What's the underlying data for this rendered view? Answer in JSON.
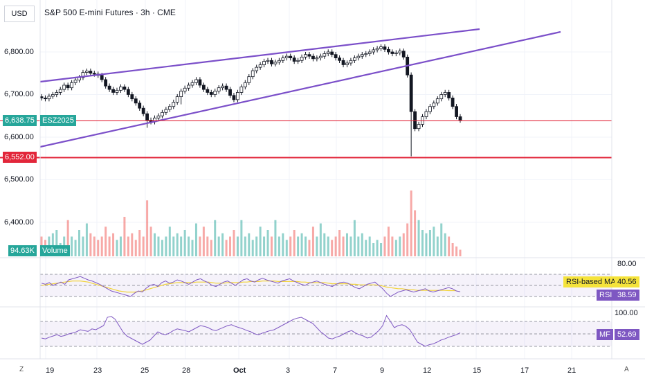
{
  "header": {
    "currency": "USD",
    "title": "S&P 500 E-mini Futures · 3h · CME"
  },
  "price_axis": {
    "labels": [
      "6,800.00",
      "6,700.00",
      "6,600.00",
      "6,500.00",
      "6,400.00"
    ],
    "current_price": "6,638.75",
    "symbol_badge": "ESZ2025",
    "support_level": "6,552.00"
  },
  "volume": {
    "value": "94.63K",
    "label": "Volume"
  },
  "rsi_panel": {
    "top_label": "80.00",
    "ma_label": "RSI-based MA",
    "ma_value": "40.56",
    "rsi_label": "RSI",
    "rsi_value": "38.59"
  },
  "mf_panel": {
    "top_label": "100.00",
    "mf_label": "MF",
    "mf_value": "52.69"
  },
  "time_axis": {
    "labels": [
      "19",
      "23",
      "25",
      "28",
      "Oct",
      "3",
      "7",
      "9",
      "12",
      "15",
      "17",
      "21"
    ],
    "left_corner": "Z",
    "right_corner": "A"
  },
  "colors": {
    "up": "#26a69a",
    "down": "#ef5350",
    "candle": "#131722",
    "channel": "#7b4fc9",
    "hline": "#e2263a",
    "rsi": "#7e57c2",
    "rsi_ma": "#f2d33a",
    "mf": "#7e57c2",
    "badge_green": "#26a69a",
    "badge_red": "#e2263a"
  },
  "chart_data": {
    "type": "candlestick",
    "title": "S&P 500 E-mini Futures · 3h · CME",
    "ylim": [
      6350,
      6880
    ],
    "y_ticks": [
      6800,
      6700,
      6600,
      6500,
      6400
    ],
    "x_ticks": [
      "19",
      "23",
      "25",
      "28",
      "Oct",
      "3",
      "7",
      "9",
      "12",
      "15",
      "17",
      "21"
    ],
    "close": [
      6692,
      6690,
      6696,
      6700,
      6705,
      6712,
      6722,
      6716,
      6728,
      6734,
      6740,
      6752,
      6755,
      6750,
      6748,
      6745,
      6735,
      6720,
      6712,
      6705,
      6710,
      6718,
      6712,
      6700,
      6690,
      6680,
      6668,
      6655,
      6640,
      6636,
      6645,
      6650,
      6658,
      6665,
      6672,
      6682,
      6695,
      6708,
      6715,
      6722,
      6728,
      6735,
      6722,
      6712,
      6705,
      6700,
      6708,
      6716,
      6720,
      6712,
      6698,
      6688,
      6705,
      6718,
      6728,
      6742,
      6756,
      6764,
      6770,
      6778,
      6780,
      6772,
      6776,
      6780,
      6786,
      6790,
      6786,
      6778,
      6780,
      6788,
      6794,
      6790,
      6784,
      6786,
      6790,
      6796,
      6800,
      6794,
      6786,
      6780,
      6770,
      6774,
      6780,
      6786,
      6790,
      6794,
      6796,
      6800,
      6805,
      6808,
      6812,
      6806,
      6800,
      6796,
      6798,
      6802,
      6788,
      6746,
      6660,
      6620,
      6630,
      6648,
      6660,
      6672,
      6680,
      6690,
      6700,
      6705,
      6692,
      6672,
      6648,
      6640
    ],
    "open": [
      6695,
      6692,
      6690,
      6696,
      6700,
      6705,
      6712,
      6722,
      6716,
      6728,
      6734,
      6740,
      6752,
      6755,
      6750,
      6748,
      6745,
      6735,
      6720,
      6712,
      6705,
      6710,
      6718,
      6712,
      6700,
      6690,
      6680,
      6668,
      6655,
      6640,
      6636,
      6645,
      6650,
      6658,
      6665,
      6672,
      6682,
      6695,
      6708,
      6715,
      6722,
      6728,
      6735,
      6722,
      6712,
      6705,
      6700,
      6708,
      6716,
      6720,
      6712,
      6698,
      6688,
      6705,
      6718,
      6728,
      6742,
      6756,
      6764,
      6770,
      6778,
      6780,
      6772,
      6776,
      6780,
      6786,
      6790,
      6786,
      6778,
      6780,
      6788,
      6794,
      6790,
      6784,
      6786,
      6790,
      6796,
      6800,
      6794,
      6786,
      6780,
      6770,
      6774,
      6780,
      6786,
      6790,
      6794,
      6796,
      6800,
      6805,
      6808,
      6812,
      6806,
      6800,
      6796,
      6798,
      6802,
      6788,
      6746,
      6660,
      6620,
      6630,
      6648,
      6660,
      6672,
      6680,
      6690,
      6700,
      6705,
      6692,
      6672,
      6648
    ],
    "volume": [
      0.3,
      0.25,
      0.3,
      0.35,
      0.4,
      0.2,
      0.3,
      0.55,
      0.3,
      0.25,
      0.4,
      0.3,
      0.5,
      0.35,
      0.3,
      0.25,
      0.3,
      0.45,
      0.3,
      0.35,
      0.25,
      0.3,
      0.6,
      0.3,
      0.35,
      0.25,
      0.4,
      0.3,
      0.85,
      0.45,
      0.35,
      0.3,
      0.25,
      0.3,
      0.45,
      0.3,
      0.35,
      0.3,
      0.4,
      0.3,
      0.25,
      0.5,
      0.3,
      0.45,
      0.3,
      0.25,
      0.55,
      0.3,
      0.35,
      0.25,
      0.3,
      0.4,
      0.3,
      0.55,
      0.3,
      0.35,
      0.25,
      0.3,
      0.45,
      0.3,
      0.4,
      0.3,
      0.55,
      0.3,
      0.35,
      0.25,
      0.3,
      0.4,
      0.3,
      0.35,
      0.3,
      0.25,
      0.45,
      0.3,
      0.5,
      0.35,
      0.3,
      0.25,
      0.3,
      0.4,
      0.3,
      0.35,
      0.3,
      0.55,
      0.3,
      0.35,
      0.25,
      0.3,
      0.2,
      0.25,
      0.2,
      0.3,
      0.45,
      0.3,
      0.25,
      0.3,
      0.35,
      0.5,
      1.0,
      0.7,
      0.55,
      0.4,
      0.35,
      0.4,
      0.45,
      0.3,
      0.5,
      0.35,
      0.3,
      0.2,
      0.15,
      0.1
    ],
    "resistance_line": {
      "from": [
        0,
        6727
      ],
      "to": [
        120,
        6855
      ]
    },
    "support_line": {
      "from": [
        0,
        6575
      ],
      "to": [
        140,
        6855
      ]
    },
    "current_level": 6638.75,
    "support_level": 6552.0,
    "rsi": [
      54,
      52,
      55,
      50,
      53,
      56,
      52,
      60,
      62,
      64,
      66,
      63,
      60,
      58,
      55,
      52,
      48,
      44,
      40,
      38,
      36,
      34,
      32,
      30,
      36,
      40,
      38,
      45,
      50,
      52,
      48,
      55,
      58,
      54,
      56,
      60,
      58,
      55,
      52,
      56,
      60,
      62,
      58,
      55,
      50,
      48,
      52,
      56,
      58,
      54,
      50,
      55,
      60,
      62,
      58,
      56,
      60,
      63,
      60,
      58,
      56,
      54,
      58,
      60,
      62,
      58,
      55,
      52,
      50,
      54,
      56,
      58,
      55,
      52,
      50,
      48,
      52,
      55,
      56,
      54,
      50,
      46,
      44,
      48,
      52,
      54,
      56,
      50,
      44,
      36,
      30,
      34,
      38,
      40,
      42,
      40,
      38,
      40,
      42,
      44,
      40,
      38,
      40,
      42,
      44,
      46,
      44,
      40,
      38.59
    ],
    "rsi_ma": [
      50,
      51,
      52,
      53,
      54,
      55,
      56,
      57,
      58,
      58,
      58,
      57,
      56,
      54,
      52,
      50,
      48,
      46,
      44,
      42,
      40,
      39,
      38,
      38,
      38,
      39,
      40,
      42,
      44,
      46,
      48,
      50,
      52,
      53,
      54,
      55,
      55,
      55,
      55,
      55,
      56,
      56,
      56,
      56,
      55,
      54,
      54,
      54,
      55,
      55,
      55,
      55,
      56,
      56,
      57,
      57,
      57,
      58,
      58,
      58,
      58,
      57,
      57,
      57,
      57,
      57,
      57,
      56,
      56,
      55,
      55,
      55,
      55,
      55,
      54,
      53,
      53,
      53,
      53,
      53,
      52,
      52,
      51,
      51,
      51,
      51,
      51,
      50,
      49,
      47,
      46,
      45,
      44,
      44,
      43,
      42,
      42,
      41,
      41,
      41,
      41,
      41,
      41,
      41,
      41,
      40.6,
      40.6,
      40.56
    ],
    "mf": [
      40,
      38,
      42,
      45,
      48,
      44,
      46,
      50,
      52,
      55,
      60,
      58,
      56,
      62,
      60,
      65,
      70,
      90,
      92,
      85,
      70,
      55,
      45,
      40,
      35,
      30,
      25,
      30,
      35,
      45,
      55,
      50,
      48,
      52,
      58,
      62,
      60,
      58,
      55,
      60,
      65,
      70,
      68,
      65,
      60,
      58,
      62,
      66,
      70,
      72,
      68,
      65,
      62,
      58,
      55,
      50,
      48,
      52,
      55,
      58,
      60,
      65,
      70,
      75,
      80,
      85,
      88,
      90,
      85,
      80,
      75,
      65,
      55,
      48,
      40,
      38,
      42,
      45,
      50,
      55,
      58,
      52,
      48,
      45,
      40,
      42,
      50,
      58,
      70,
      94,
      80,
      65,
      70,
      72,
      68,
      60,
      45,
      30,
      25,
      20,
      24,
      26,
      30,
      35,
      38,
      42,
      45,
      48,
      52.69
    ]
  }
}
